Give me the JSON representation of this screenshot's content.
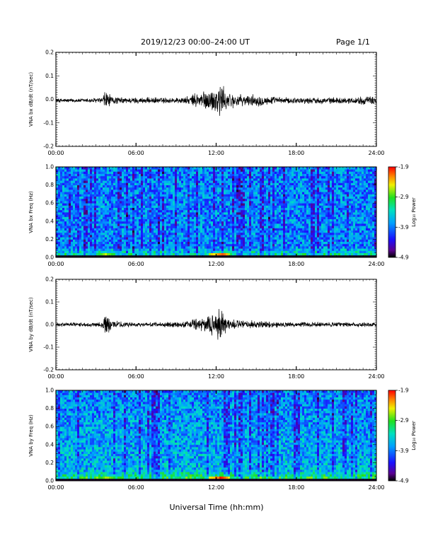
{
  "header": {
    "title": "2019/12/23  00:00–24:00 UT",
    "page": "Page 1/1"
  },
  "xlabel": "Universal Time (hh:mm)",
  "chart_data": [
    {
      "type": "line",
      "ylabel": "VNA bx dB/dt (nT/sec)",
      "xlim": [
        0,
        24
      ],
      "ylim": [
        -0.2,
        0.2
      ],
      "x_ticks": [
        "00:00",
        "06:00",
        "12:00",
        "18:00",
        "24:00"
      ],
      "y_ticks": [
        "0.2",
        "0.1",
        "0.0",
        "-0.1",
        "-0.2"
      ],
      "y_tick_values": [
        0.2,
        0.1,
        0.0,
        -0.1,
        -0.2
      ],
      "series": [
        {
          "color": "#000000",
          "envelope_x": [
            0,
            2,
            3.5,
            3.7,
            3.9,
            4.2,
            5,
            6,
            7,
            8,
            9,
            10,
            10.5,
            11,
            11.5,
            12,
            12.3,
            12.6,
            13,
            14,
            15,
            16,
            17,
            18,
            19,
            20,
            21,
            22,
            23,
            24
          ],
          "envelope_amp": [
            0.01,
            0.01,
            0.015,
            0.065,
            0.04,
            0.02,
            0.015,
            0.015,
            0.015,
            0.015,
            0.015,
            0.02,
            0.04,
            0.05,
            0.05,
            0.065,
            0.11,
            0.055,
            0.04,
            0.025,
            0.03,
            0.02,
            0.015,
            0.015,
            0.015,
            0.015,
            0.015,
            0.015,
            0.02,
            0.02
          ],
          "baseline": -0.005
        }
      ]
    },
    {
      "type": "heatmap",
      "ylabel": "VNA bx Freq (Hz)",
      "xlim": [
        0,
        24
      ],
      "ylim": [
        0.0,
        1.0
      ],
      "x_ticks": [
        "00:00",
        "06:00",
        "12:00",
        "18:00",
        "24:00"
      ],
      "y_ticks": [
        "1.0",
        "0.8",
        "0.6",
        "0.4",
        "0.2",
        "0.0"
      ],
      "y_tick_values": [
        1.0,
        0.8,
        0.6,
        0.4,
        0.2,
        0.0
      ],
      "colorbar": {
        "label": "Log₁₀ Power",
        "ticks": [
          "-1.9",
          "-2.9",
          "-3.9",
          "-4.9"
        ],
        "tick_values": [
          -1.9,
          -2.9,
          -3.9,
          -4.9
        ],
        "min": -4.9,
        "max": -1.9
      },
      "low_freq_enhancement": [
        {
          "t": 3.8,
          "power": -2.6
        },
        {
          "t": 12.0,
          "power": -2.3
        },
        {
          "t": 12.4,
          "power": -2.1
        }
      ]
    },
    {
      "type": "line",
      "ylabel": "VNA by dB/dt (nT/sec)",
      "xlim": [
        0,
        24
      ],
      "ylim": [
        -0.2,
        0.2
      ],
      "x_ticks": [
        "00:00",
        "06:00",
        "12:00",
        "18:00",
        "24:00"
      ],
      "y_ticks": [
        "0.2",
        "0.1",
        "0.0",
        "-0.1",
        "-0.2"
      ],
      "y_tick_values": [
        0.2,
        0.1,
        0.0,
        -0.1,
        -0.2
      ],
      "series": [
        {
          "color": "#000000",
          "envelope_x": [
            0,
            2,
            3.5,
            3.7,
            3.9,
            4.2,
            5,
            6,
            7,
            8,
            9,
            10,
            10.5,
            11,
            11.5,
            12,
            12.3,
            12.6,
            13,
            14,
            15,
            16,
            17,
            18,
            19,
            20,
            21,
            22,
            23,
            24
          ],
          "envelope_amp": [
            0.01,
            0.01,
            0.015,
            0.06,
            0.045,
            0.02,
            0.015,
            0.01,
            0.01,
            0.012,
            0.015,
            0.02,
            0.03,
            0.035,
            0.04,
            0.08,
            0.1,
            0.06,
            0.03,
            0.02,
            0.02,
            0.015,
            0.012,
            0.012,
            0.012,
            0.012,
            0.012,
            0.012,
            0.012,
            0.012
          ],
          "baseline": 0.0
        }
      ]
    },
    {
      "type": "heatmap",
      "ylabel": "VNA by Freq (Hz)",
      "xlim": [
        0,
        24
      ],
      "ylim": [
        0.0,
        1.0
      ],
      "x_ticks": [
        "00:00",
        "06:00",
        "12:00",
        "18:00",
        "24:00"
      ],
      "y_ticks": [
        "1.0",
        "0.8",
        "0.6",
        "0.4",
        "0.2",
        "0.0"
      ],
      "y_tick_values": [
        1.0,
        0.8,
        0.6,
        0.4,
        0.2,
        0.0
      ],
      "colorbar": {
        "label": "Log₁₀ Power",
        "ticks": [
          "-1.9",
          "-2.9",
          "-3.9",
          "-4.9"
        ],
        "tick_values": [
          -1.9,
          -2.9,
          -3.9,
          -4.9
        ],
        "min": -4.9,
        "max": -1.9
      },
      "low_freq_enhancement": [
        {
          "t": 3.8,
          "power": -2.6
        },
        {
          "t": 12.0,
          "power": -2.2
        },
        {
          "t": 12.4,
          "power": -2.0
        }
      ]
    }
  ]
}
